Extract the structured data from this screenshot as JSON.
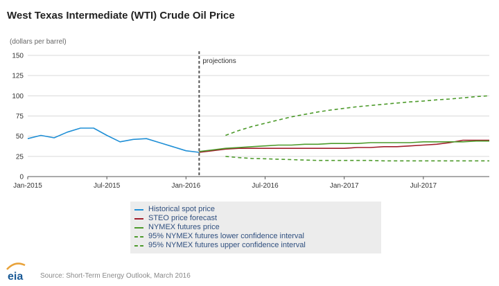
{
  "chart_data": {
    "type": "line",
    "title": "West Texas Intermediate (WTI) Crude Oil Price",
    "ylabel": "(dollars per barrel)",
    "xlabel": "",
    "ylim": [
      0,
      150
    ],
    "yticks": [
      0,
      25,
      50,
      75,
      100,
      125,
      150
    ],
    "x_domain": [
      "2015-01",
      "2017-12"
    ],
    "xticks": [
      {
        "x": "2015-01",
        "label": "Jan-2015"
      },
      {
        "x": "2015-07",
        "label": "Jul-2015"
      },
      {
        "x": "2016-01",
        "label": "Jan-2016"
      },
      {
        "x": "2016-07",
        "label": "Jul-2016"
      },
      {
        "x": "2017-01",
        "label": "Jan-2017"
      },
      {
        "x": "2017-07",
        "label": "Jul-2017"
      }
    ],
    "grid": true,
    "annotations": [
      {
        "type": "vline",
        "x": "2016-02",
        "label": "projections"
      }
    ],
    "series": [
      {
        "name": "Historical spot price",
        "color": "#1f8fd6",
        "dash": "solid",
        "x": [
          "2015-01",
          "2015-02",
          "2015-03",
          "2015-04",
          "2015-05",
          "2015-06",
          "2015-07",
          "2015-08",
          "2015-09",
          "2015-10",
          "2015-11",
          "2015-12",
          "2016-01",
          "2016-02"
        ],
        "values": [
          47,
          51,
          48,
          55,
          60,
          60,
          51,
          43,
          46,
          47,
          42,
          37,
          32,
          30
        ]
      },
      {
        "name": "STEO price forecast",
        "color": "#a01c2a",
        "dash": "solid",
        "x": [
          "2016-02",
          "2016-03",
          "2016-04",
          "2016-05",
          "2016-06",
          "2016-07",
          "2016-08",
          "2016-09",
          "2016-10",
          "2016-11",
          "2016-12",
          "2017-01",
          "2017-02",
          "2017-03",
          "2017-04",
          "2017-05",
          "2017-06",
          "2017-07",
          "2017-08",
          "2017-09",
          "2017-10",
          "2017-11",
          "2017-12"
        ],
        "values": [
          30,
          32,
          34,
          35,
          35,
          35,
          35,
          35,
          35,
          35,
          35,
          35,
          36,
          36,
          37,
          37,
          38,
          39,
          40,
          42,
          45,
          45,
          45
        ]
      },
      {
        "name": "NYMEX futures price",
        "color": "#4c9a2a",
        "dash": "solid",
        "x": [
          "2016-02",
          "2016-03",
          "2016-04",
          "2016-05",
          "2016-06",
          "2016-07",
          "2016-08",
          "2016-09",
          "2016-10",
          "2016-11",
          "2016-12",
          "2017-01",
          "2017-02",
          "2017-03",
          "2017-04",
          "2017-05",
          "2017-06",
          "2017-07",
          "2017-08",
          "2017-09",
          "2017-10",
          "2017-11",
          "2017-12"
        ],
        "values": [
          31,
          33,
          35,
          36,
          37,
          38,
          39,
          39,
          40,
          40,
          41,
          41,
          41,
          42,
          42,
          42,
          42,
          43,
          43,
          43,
          43,
          44,
          44
        ]
      },
      {
        "name": "95% NYMEX futures lower confidence interval",
        "color": "#4c9a2a",
        "dash": "dashed",
        "x": [
          "2016-04",
          "2016-05",
          "2016-06",
          "2016-07",
          "2016-08",
          "2016-09",
          "2016-10",
          "2016-11",
          "2016-12",
          "2017-01",
          "2017-02",
          "2017-03",
          "2017-04",
          "2017-05",
          "2017-06",
          "2017-07",
          "2017-08",
          "2017-09",
          "2017-10",
          "2017-11",
          "2017-12"
        ],
        "values": [
          25,
          23.5,
          22.5,
          22,
          21.5,
          21,
          20.5,
          20,
          20,
          20,
          20,
          20,
          19.5,
          19.5,
          19.5,
          19.5,
          19.5,
          19.5,
          19.5,
          19.5,
          19.5
        ]
      },
      {
        "name": "95% NYMEX futures upper confidence interval",
        "color": "#4c9a2a",
        "dash": "dashed",
        "x": [
          "2016-04",
          "2016-05",
          "2016-06",
          "2016-07",
          "2016-08",
          "2016-09",
          "2016-10",
          "2016-11",
          "2016-12",
          "2017-01",
          "2017-02",
          "2017-03",
          "2017-04",
          "2017-05",
          "2017-06",
          "2017-07",
          "2017-08",
          "2017-09",
          "2017-10",
          "2017-11",
          "2017-12"
        ],
        "values": [
          51,
          57,
          62,
          66,
          70,
          74,
          77,
          80,
          82.5,
          84.5,
          86.5,
          88,
          89.5,
          91,
          92.5,
          93.5,
          95,
          96,
          97.5,
          99,
          100
        ]
      }
    ],
    "legend": {
      "placement": "bottom-center"
    },
    "source": "Source: Short-Term Energy Outlook, March 2016",
    "logo_text": "eia"
  }
}
